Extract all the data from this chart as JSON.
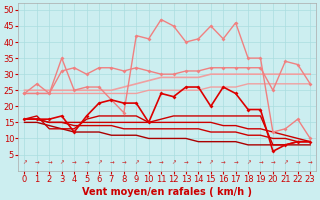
{
  "xlabel": "Vent moyen/en rafales ( km/h )",
  "background_color": "#cceef0",
  "grid_color": "#aadddf",
  "xlim": [
    -0.5,
    23.5
  ],
  "ylim": [
    0,
    52
  ],
  "yticks": [
    5,
    10,
    15,
    20,
    25,
    30,
    35,
    40,
    45,
    50
  ],
  "xticks": [
    0,
    1,
    2,
    3,
    4,
    5,
    6,
    7,
    8,
    9,
    10,
    11,
    12,
    13,
    14,
    15,
    16,
    17,
    18,
    19,
    20,
    21,
    22,
    23
  ],
  "x": [
    0,
    1,
    2,
    3,
    4,
    5,
    6,
    7,
    8,
    9,
    10,
    11,
    12,
    13,
    14,
    15,
    16,
    17,
    18,
    19,
    20,
    21,
    22,
    23
  ],
  "lines": [
    {
      "y": [
        25,
        25,
        25,
        25,
        25,
        25,
        25,
        25,
        26,
        27,
        28,
        29,
        29,
        29,
        29,
        30,
        30,
        30,
        30,
        30,
        30,
        30,
        30,
        30
      ],
      "color": "#f0a0a0",
      "lw": 1.2,
      "marker": null
    },
    {
      "y": [
        24,
        24,
        24,
        24,
        24,
        24,
        24,
        24,
        24,
        24,
        25,
        25,
        25,
        25,
        25,
        26,
        26,
        26,
        27,
        27,
        27,
        27,
        27,
        27
      ],
      "color": "#f0a0a0",
      "lw": 1.0,
      "marker": null
    },
    {
      "y": [
        24,
        27,
        24,
        35,
        25,
        26,
        26,
        22,
        18,
        42,
        41,
        47,
        45,
        40,
        41,
        45,
        41,
        46,
        35,
        35,
        12,
        13,
        16,
        10
      ],
      "color": "#f08080",
      "lw": 1.0,
      "marker": "D",
      "ms": 2
    },
    {
      "y": [
        24,
        24,
        24,
        31,
        32,
        30,
        32,
        32,
        31,
        32,
        31,
        30,
        30,
        31,
        31,
        32,
        32,
        32,
        32,
        32,
        25,
        34,
        33,
        27
      ],
      "color": "#f08080",
      "lw": 1.0,
      "marker": "D",
      "ms": 2
    },
    {
      "y": [
        16,
        16,
        16,
        17,
        12,
        17,
        21,
        22,
        21,
        21,
        15,
        24,
        23,
        26,
        26,
        20,
        26,
        24,
        19,
        19,
        6,
        8,
        9,
        9
      ],
      "color": "#dd0000",
      "lw": 1.2,
      "marker": "D",
      "ms": 2
    },
    {
      "y": [
        16,
        16,
        15,
        15,
        15,
        15,
        15,
        15,
        15,
        15,
        15,
        15,
        15,
        15,
        15,
        15,
        14,
        14,
        13,
        13,
        12,
        11,
        10,
        9
      ],
      "color": "#cc0000",
      "lw": 1.0,
      "marker": null
    },
    {
      "y": [
        16,
        16,
        15,
        15,
        14,
        14,
        14,
        14,
        13,
        13,
        13,
        13,
        13,
        13,
        13,
        12,
        12,
        12,
        11,
        11,
        10,
        10,
        9,
        9
      ],
      "color": "#cc0000",
      "lw": 1.0,
      "marker": null
    },
    {
      "y": [
        15,
        15,
        14,
        13,
        12,
        12,
        12,
        11,
        11,
        11,
        10,
        10,
        10,
        10,
        9,
        9,
        9,
        9,
        8,
        8,
        8,
        8,
        8,
        8
      ],
      "color": "#aa0000",
      "lw": 1.0,
      "marker": null
    },
    {
      "y": [
        16,
        17,
        13,
        13,
        13,
        16,
        17,
        17,
        17,
        17,
        15,
        16,
        17,
        17,
        17,
        17,
        17,
        17,
        17,
        17,
        8,
        8,
        9,
        9
      ],
      "color": "#cc0000",
      "lw": 1.0,
      "marker": null
    }
  ],
  "arrows": {
    "color": "#cc2222",
    "y_data": 2.5
  },
  "xlabel_fontsize": 7,
  "tick_fontsize": 6,
  "figsize": [
    3.2,
    2.0
  ],
  "dpi": 100
}
